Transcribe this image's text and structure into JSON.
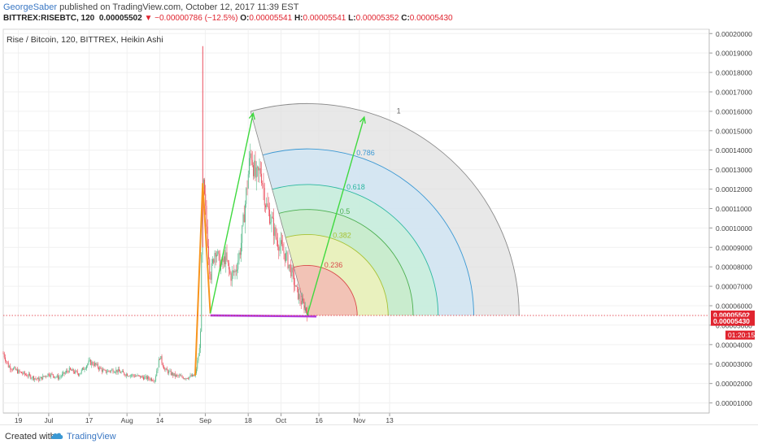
{
  "header": {
    "publisher": "GeorgeSaber",
    "published_text": " published on TradingView.com, October 12, 2017 11:39 EST",
    "symbol": "BITTREX:RISEBTC, 120",
    "last": "0.00005502",
    "change_icon": "down-triangle-icon",
    "change": "−0.00000786 (−12.5%)",
    "o_label": "O:",
    "o_value": "0.00005541",
    "h_label": "H:",
    "h_value": "0.00005541",
    "l_label": "L:",
    "l_value": "0.00005352",
    "c_label": "C:",
    "c_value": "0.00005430"
  },
  "chart_data": {
    "type": "candlestick",
    "title": "Rise / Bitcoin, 120, BITTREX, Heikin Ashi",
    "x_ticks": [
      "19",
      "Jul",
      "17",
      "Aug",
      "14",
      "Sep",
      "18",
      "Oct",
      "16",
      "Nov",
      "13"
    ],
    "y_ticks": [
      "0.00001000",
      "0.00002000",
      "0.00003000",
      "0.00004000",
      "0.00005000",
      "0.00006000",
      "0.00007000",
      "0.00008000",
      "0.00009000",
      "0.00010000",
      "0.00011000",
      "0.00012000",
      "0.00013000",
      "0.00014000",
      "0.00015000",
      "0.00016000",
      "0.00017000",
      "0.00018000",
      "0.00019000",
      "0.00020000"
    ],
    "ylim": [
      4.8e-06,
      0.0002022
    ],
    "price_points": [
      [
        "2017-06-13",
        3.55e-05
      ],
      [
        "2017-06-15",
        2.9e-05
      ],
      [
        "2017-06-19",
        2.6e-05
      ],
      [
        "2017-06-23",
        2.4e-05
      ],
      [
        "2017-06-27",
        2.2e-05
      ],
      [
        "2017-07-01",
        2.5e-05
      ],
      [
        "2017-07-05",
        2.3e-05
      ],
      [
        "2017-07-09",
        2.7e-05
      ],
      [
        "2017-07-13",
        2.5e-05
      ],
      [
        "2017-07-17",
        3.1e-05
      ],
      [
        "2017-07-19",
        3e-05
      ],
      [
        "2017-07-23",
        2.6e-05
      ],
      [
        "2017-07-27",
        2.7e-05
      ],
      [
        "2017-07-31",
        2.5e-05
      ],
      [
        "2017-08-04",
        2.4e-05
      ],
      [
        "2017-08-08",
        2.3e-05
      ],
      [
        "2017-08-12",
        2.2e-05
      ],
      [
        "2017-08-14",
        3.4e-05
      ],
      [
        "2017-08-16",
        2.7e-05
      ],
      [
        "2017-08-20",
        2.4e-05
      ],
      [
        "2017-08-24",
        2.3e-05
      ],
      [
        "2017-08-28",
        2.4e-05
      ],
      [
        "2017-08-30",
        4e-05
      ],
      [
        "2017-08-31",
        0.000125
      ],
      [
        "2017-09-01",
        0.00011
      ],
      [
        "2017-09-03",
        7.5e-05
      ],
      [
        "2017-09-05",
        9e-05
      ],
      [
        "2017-09-07",
        8e-05
      ],
      [
        "2017-09-09",
        8.5e-05
      ],
      [
        "2017-09-11",
        7.5e-05
      ],
      [
        "2017-09-13",
        7.8e-05
      ],
      [
        "2017-09-15",
        9e-05
      ],
      [
        "2017-09-17",
        0.000115
      ],
      [
        "2017-09-19",
        0.00014
      ],
      [
        "2017-09-21",
        0.000125
      ],
      [
        "2017-09-23",
        0.00013
      ],
      [
        "2017-09-25",
        0.000112
      ],
      [
        "2017-09-27",
        0.000105
      ],
      [
        "2017-09-29",
        9.5e-05
      ],
      [
        "2017-10-01",
        9e-05
      ],
      [
        "2017-10-03",
        8.5e-05
      ],
      [
        "2017-10-05",
        7.8e-05
      ],
      [
        "2017-10-07",
        6.8e-05
      ],
      [
        "2017-10-09",
        6.2e-05
      ],
      [
        "2017-10-11",
        5.8e-05
      ],
      [
        "2017-10-12",
        5.5e-05
      ]
    ],
    "spike_high": [
      "2017-08-31",
      0.0001935
    ],
    "fib_levels": [
      "0.236",
      "0.382",
      "0.5",
      "0.618",
      "0.786",
      "1"
    ],
    "fib_colors": [
      "#f4b3b3",
      "#f3f3b8",
      "#c8ebc8",
      "#c7f0d8",
      "#cfe6f5",
      "#e0e0e0"
    ],
    "fib_line_colors": [
      "#d94a4a",
      "#a7c234",
      "#4caf50",
      "#2bb7a0",
      "#3b98d3",
      "#8a8a8a"
    ],
    "fib_label_colors": [
      "#d94a4a",
      "#a7c234",
      "#4caf50",
      "#2bb7a0",
      "#3b98d3",
      "#666666"
    ],
    "horizontal_level": 5.5e-05,
    "price_labels": [
      {
        "text": "0.00005502",
        "value": 5.502e-05,
        "bg": "#e0242f"
      },
      {
        "text": "0.00005430",
        "value": 5.43e-05,
        "bg": "#e0242f"
      }
    ],
    "countdown": "01:20:15",
    "colors": {
      "up": "#53b987",
      "down": "#eb4d5c",
      "orange": "#f7941d",
      "green": "#3fd93f",
      "purple": "#b23ee0",
      "dotted": "#e0242f"
    }
  },
  "footer": {
    "created_with": "Created with",
    "logo_icon": "tradingview-cloud-icon",
    "brand": "TradingView"
  }
}
